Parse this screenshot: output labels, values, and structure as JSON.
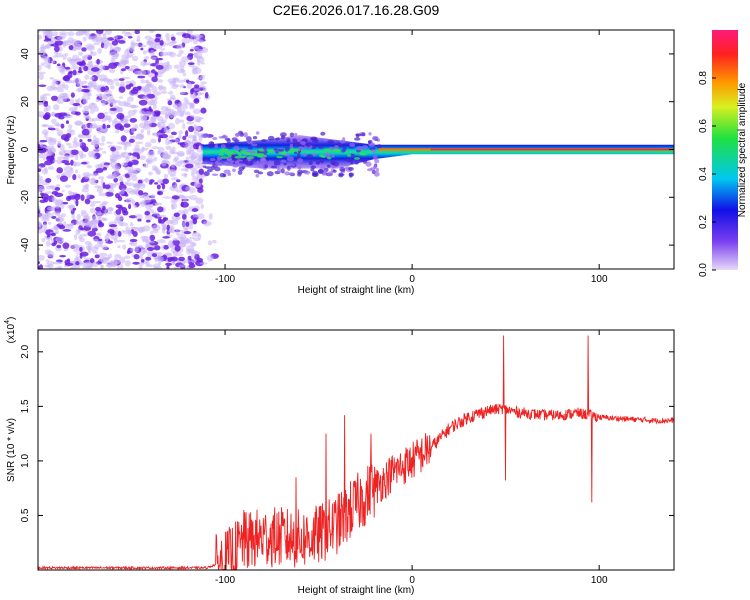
{
  "title": "C2E6.2026.017.16.28.G09",
  "colors": {
    "snr_line": "#ee2222",
    "axis": "#000000",
    "spec_purple": "#6a1fe0",
    "spec_light": "#c9b2f5"
  },
  "chart_data": [
    {
      "type": "heatmap",
      "name": "spectrogram",
      "xlabel": "Height of straight line (km)",
      "ylabel": "Frequency (Hz)",
      "xlim": [
        -200,
        140
      ],
      "ylim": [
        -50,
        50
      ],
      "x_ticks": [
        {
          "value": -100,
          "label": "-100"
        },
        {
          "value": 0,
          "label": "0"
        },
        {
          "value": 100,
          "label": "100"
        }
      ],
      "y_ticks": [
        {
          "value": -40,
          "label": "-40"
        },
        {
          "value": -20,
          "label": "-20"
        },
        {
          "value": 0,
          "label": "0"
        },
        {
          "value": 20,
          "label": "20"
        },
        {
          "value": 40,
          "label": "40"
        }
      ],
      "noise_region_x": [
        -200,
        -112
      ],
      "signal_band": [
        {
          "x": -112,
          "center": -2,
          "halfwidth": 4
        },
        {
          "x": -80,
          "center": -2,
          "halfwidth": 6
        },
        {
          "x": -60,
          "center": -1,
          "halfwidth": 7
        },
        {
          "x": -40,
          "center": -2,
          "halfwidth": 6
        },
        {
          "x": -20,
          "center": -1,
          "halfwidth": 3
        },
        {
          "x": 0,
          "center": 0,
          "halfwidth": 2
        },
        {
          "x": 20,
          "center": 0,
          "halfwidth": 2
        },
        {
          "x": 60,
          "center": 0,
          "halfwidth": 2
        },
        {
          "x": 100,
          "center": 0,
          "halfwidth": 2
        },
        {
          "x": 140,
          "center": 0,
          "halfwidth": 2
        }
      ]
    },
    {
      "type": "colorbar",
      "name": "amplitude-colorbar",
      "label": "Normalized spectral amplitude",
      "range": [
        0,
        1
      ],
      "ticks": [
        {
          "value": 0,
          "label": "0.0"
        },
        {
          "value": 0.2,
          "label": "0.2"
        },
        {
          "value": 0.4,
          "label": "0.4"
        },
        {
          "value": 0.6,
          "label": "0.6"
        },
        {
          "value": 0.8,
          "label": "0.8"
        }
      ]
    },
    {
      "type": "line",
      "name": "snr",
      "xlabel": "Height of straight line (km)",
      "ylabel": "SNR (10 * v/v)",
      "scale_label": "(x10",
      "scale_exponent": "4",
      "xlim": [
        -200,
        140
      ],
      "ylim": [
        0.0,
        2.2
      ],
      "x_ticks": [
        {
          "value": -100,
          "label": "-100"
        },
        {
          "value": 0,
          "label": "0"
        },
        {
          "value": 100,
          "label": "100"
        }
      ],
      "y_ticks": [
        {
          "value": 0.5,
          "label": "0.5"
        },
        {
          "value": 1.0,
          "label": "1.0"
        },
        {
          "value": 1.5,
          "label": "1.5"
        },
        {
          "value": 2.0,
          "label": "2.0"
        }
      ],
      "series": [
        {
          "name": "SNR envelope",
          "x": [
            -200,
            -110,
            -100,
            -90,
            -80,
            -70,
            -60,
            -50,
            -40,
            -30,
            -20,
            -10,
            0,
            10,
            20,
            30,
            40,
            48,
            55,
            60,
            70,
            80,
            88,
            95,
            100,
            110,
            120,
            130,
            140
          ],
          "y": [
            0.02,
            0.02,
            0.08,
            0.25,
            0.3,
            0.3,
            0.28,
            0.32,
            0.42,
            0.6,
            0.75,
            0.9,
            1.0,
            1.12,
            1.3,
            1.4,
            1.46,
            1.48,
            1.45,
            1.44,
            1.42,
            1.42,
            1.44,
            1.42,
            1.4,
            1.39,
            1.38,
            1.37,
            1.37
          ]
        }
      ],
      "spikes": [
        {
          "x": -90,
          "y": 0.55
        },
        {
          "x": -62,
          "y": 0.85
        },
        {
          "x": -46,
          "y": 1.25
        },
        {
          "x": -36,
          "y": 1.42
        },
        {
          "x": -22,
          "y": 1.25
        },
        {
          "x": 49,
          "y": 2.15
        },
        {
          "x": 50,
          "y": 0.82
        },
        {
          "x": 94,
          "y": 2.15
        },
        {
          "x": 96,
          "y": 0.62
        }
      ]
    }
  ]
}
